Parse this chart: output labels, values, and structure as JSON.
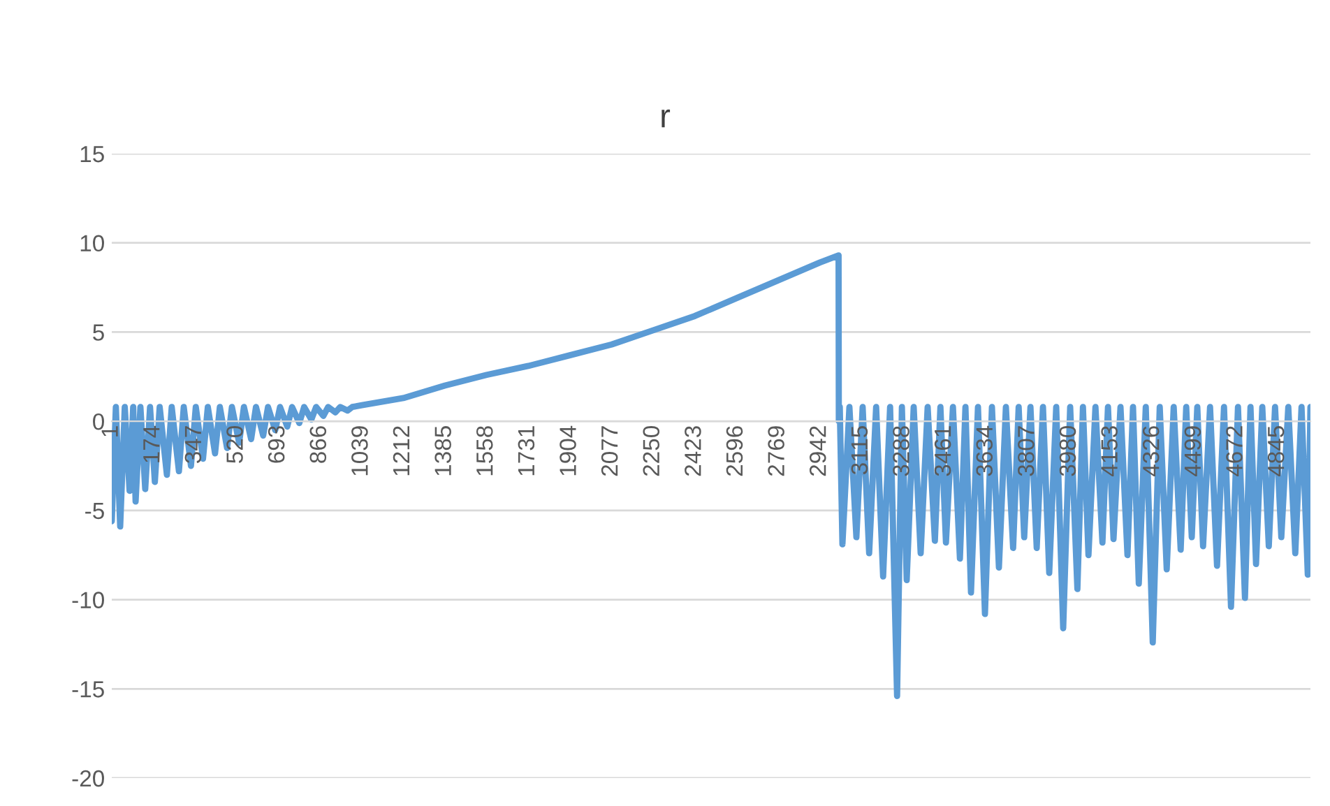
{
  "chart_data": {
    "type": "line",
    "title": "r",
    "color": "#5b9bd5",
    "grid": "y",
    "legend": false,
    "marker": "none",
    "line_style": "solid",
    "ylim": [
      -20,
      15
    ],
    "yticks": [
      -20,
      -15,
      -10,
      -5,
      0,
      5,
      10,
      15
    ],
    "xlim": [
      1,
      4980
    ],
    "xticks": [
      1,
      174,
      347,
      520,
      693,
      866,
      1039,
      1212,
      1385,
      1558,
      1731,
      1904,
      2077,
      2250,
      2423,
      2596,
      2769,
      2942,
      3115,
      3288,
      3461,
      3634,
      3807,
      3980,
      4153,
      4326,
      4499,
      4672,
      4845
    ],
    "x": [
      1,
      18,
      36,
      55,
      75,
      90,
      100,
      120,
      140,
      160,
      180,
      200,
      230,
      250,
      280,
      300,
      330,
      350,
      380,
      400,
      430,
      450,
      480,
      500,
      530,
      550,
      580,
      600,
      630,
      650,
      680,
      700,
      730,
      750,
      780,
      800,
      830,
      850,
      880,
      900,
      930,
      950,
      980,
      1000,
      1040,
      1212,
      1385,
      1558,
      1731,
      1904,
      2077,
      2250,
      2423,
      2596,
      2769,
      2942,
      3020,
      3021,
      3025,
      3036,
      3065,
      3094,
      3120,
      3147,
      3176,
      3205,
      3234,
      3263,
      3283,
      3303,
      3332,
      3361,
      3390,
      3420,
      3443,
      3466,
      3495,
      3524,
      3547,
      3570,
      3599,
      3628,
      3657,
      3686,
      3715,
      3745,
      3768,
      3791,
      3817,
      3843,
      3869,
      3895,
      3924,
      3953,
      3982,
      4012,
      4035,
      4058,
      4087,
      4116,
      4139,
      4162,
      4191,
      4220,
      4243,
      4267,
      4296,
      4325,
      4354,
      4383,
      4412,
      4441,
      4464,
      4487,
      4510,
      4534,
      4563,
      4592,
      4621,
      4650,
      4679,
      4708,
      4731,
      4754,
      4780,
      4807,
      4833,
      4859,
      4888,
      4917,
      4943,
      4969,
      4980
    ],
    "values": [
      -5.6,
      0.8,
      -5.9,
      0.8,
      -3.9,
      0.8,
      -4.5,
      0.8,
      -3.8,
      0.8,
      -3.4,
      0.8,
      -3.0,
      0.8,
      -2.8,
      0.8,
      -2.5,
      0.8,
      -2.1,
      0.8,
      -1.8,
      0.8,
      -1.5,
      0.8,
      -1.2,
      0.8,
      -1.0,
      0.8,
      -0.8,
      0.8,
      -0.5,
      0.8,
      -0.3,
      0.8,
      -0.1,
      0.8,
      0.1,
      0.8,
      0.3,
      0.8,
      0.5,
      0.8,
      0.6,
      0.8,
      0.9,
      1.3,
      2.0,
      2.6,
      3.1,
      3.7,
      4.3,
      5.1,
      5.9,
      6.9,
      7.9,
      8.9,
      9.3,
      0,
      0.8,
      -6.9,
      0.8,
      -6.5,
      0.8,
      -7.4,
      0.8,
      -8.7,
      0.8,
      -15.4,
      0.8,
      -8.9,
      0.8,
      -7.4,
      0.8,
      -6.7,
      0.8,
      -6.8,
      0.8,
      -7.7,
      0.8,
      -9.6,
      0.8,
      -10.8,
      0.8,
      -8.2,
      0.8,
      -7.1,
      0.8,
      -6.5,
      0.8,
      -7.1,
      0.8,
      -8.5,
      0.8,
      -11.6,
      0.8,
      -9.4,
      0.8,
      -7.5,
      0.8,
      -6.8,
      0.8,
      -6.6,
      0.8,
      -7.5,
      0.8,
      -9.1,
      0.8,
      -12.4,
      0.8,
      -8.3,
      0.8,
      -7.2,
      0.8,
      -6.5,
      0.8,
      -7.0,
      0.8,
      -8.1,
      0.8,
      -10.4,
      0.8,
      -9.9,
      0.8,
      -8.0,
      0.8,
      -7.0,
      0.8,
      -6.5,
      0.8,
      -7.4,
      0.8,
      -8.6,
      0.8
    ]
  }
}
